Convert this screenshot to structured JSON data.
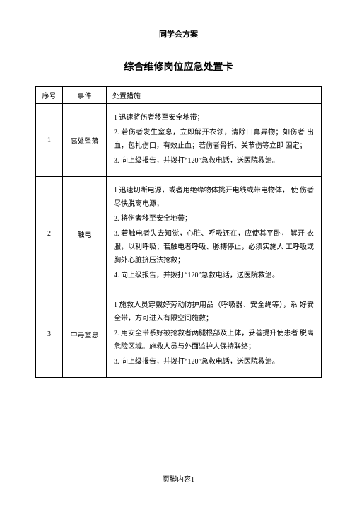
{
  "header": "同学会方案",
  "title": "综合维修岗位应急处置卡",
  "table": {
    "columns": [
      "序号",
      "事件",
      "处置措施"
    ],
    "rows": [
      {
        "seq": "1",
        "event": "高处坠落",
        "measures": [
          "1 迅速将伤者移至安全地带；",
          "2.  若伤者发生窒息，立即解开衣领，清除口鼻异物；如伤者 出血，包扎伤口，有效止血；若伤者骨折、关节伤等立即 固定；",
          "3.  向上级报告，并拨打“120”急救电话，送医院救治。"
        ]
      },
      {
        "seq": "2",
        "event": "触电",
        "measures": [
          "1 迅速切断电源，或者用绝缘物体挑开电线或带电物体， 使 伤者尽快脱离电源；",
          "2.  将伤者移至安全地带；",
          "3.  若触电者失去知觉，心脏、呼吸还在，应使其平卧， 解开 衣服，以利呼吸；若触电者呼吸、脉搏停止，必须实施人 工呼吸或胸外心脏挤压法抢救；",
          "4.  向上级报告，并拨打“120”急救电话，送医院救治。"
        ]
      },
      {
        "seq": "3",
        "event": "中毒窒息",
        "measures": [
          "1 施救人员穿戴好劳动防护用品（呼吸器、安全绳等），系 好安全带，方可进入有限空间施救；",
          "2.  用安全带系好被抢救者两腿根部及上体，妥善提升使患者 脱离危险区域。施救人员与外面监护人保持联络；",
          "3.  向上级报告，并拨打“120”急救电话，送医院救治。"
        ]
      }
    ]
  },
  "footer": "页脚内容1"
}
